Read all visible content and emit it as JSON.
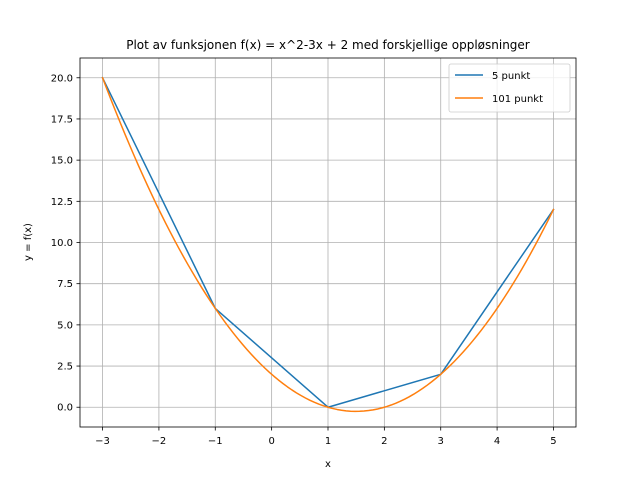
{
  "chart_data": {
    "type": "line",
    "title": "Plot av funksjonen f(x) = x^2-3x + 2 med forskjellige oppløsninger",
    "xlabel": "x",
    "ylabel": "y = f(x)",
    "xlim": [
      -3.4,
      5.4
    ],
    "ylim": [
      -1.2,
      21.2
    ],
    "xticks": [
      -3,
      -2,
      -1,
      0,
      1,
      2,
      3,
      4,
      5
    ],
    "xtick_labels": [
      "−3",
      "−2",
      "−1",
      "0",
      "1",
      "2",
      "3",
      "4",
      "5"
    ],
    "yticks": [
      0.0,
      2.5,
      5.0,
      7.5,
      10.0,
      12.5,
      15.0,
      17.5,
      20.0
    ],
    "ytick_labels": [
      "0.0",
      "2.5",
      "5.0",
      "7.5",
      "10.0",
      "12.5",
      "15.0",
      "17.5",
      "20.0"
    ],
    "grid": true,
    "legend_position": "top-right",
    "series": [
      {
        "name": "5 punkt",
        "color": "#1f77b4",
        "x": [
          -3,
          -1,
          1,
          3,
          5
        ],
        "y": [
          20,
          6,
          0,
          2,
          12
        ]
      },
      {
        "name": "101 punkt",
        "color": "#ff7f0e",
        "x": [
          -3.0,
          -2.5,
          -2.0,
          -1.5,
          -1.0,
          -0.5,
          0.0,
          0.5,
          1.0,
          1.5,
          2.0,
          2.5,
          3.0,
          3.5,
          4.0,
          4.5,
          5.0
        ],
        "y": [
          20.0,
          15.75,
          12.0,
          8.75,
          6.0,
          3.75,
          2.0,
          0.75,
          0.0,
          -0.25,
          0.0,
          0.75,
          2.0,
          3.75,
          6.0,
          8.75,
          12.0
        ]
      }
    ]
  }
}
